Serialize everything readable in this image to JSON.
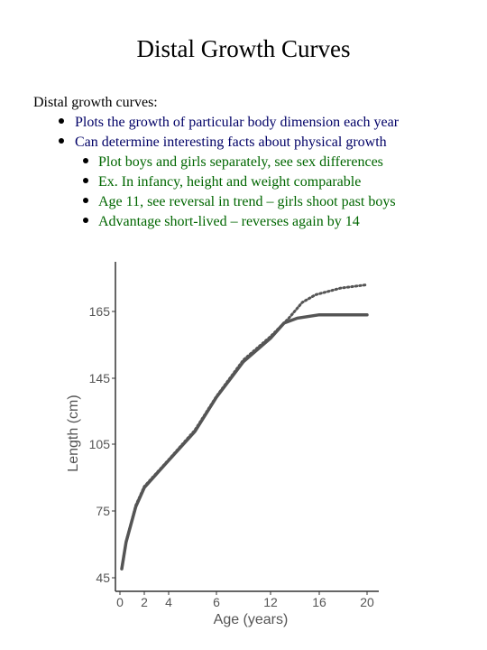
{
  "title": "Distal Growth Curves",
  "intro": "Distal growth curves:",
  "bullets": [
    {
      "text": "Plots the growth of particular body dimension each year",
      "sub": []
    },
    {
      "text": "Can determine interesting facts about physical growth",
      "sub": [
        "Plot boys and girls separately, see sex differences",
        "Ex. In infancy, height and weight comparable",
        "Age 11, see reversal in trend – girls shoot past boys",
        "Advantage short-lived – reverses again by 14"
      ]
    }
  ],
  "chart_data": {
    "type": "line",
    "x_label": "Age (years)",
    "y_label": "Length (cm)",
    "xlim": [
      -0.4,
      21
    ],
    "ylim": [
      39,
      180
    ],
    "xticks": [
      0,
      2,
      4,
      6,
      12,
      16,
      20
    ],
    "yticks": [
      45,
      75,
      105,
      145,
      165
    ],
    "series": [
      {
        "color": "#555555",
        "style": "solid",
        "x": [
          0.15,
          0.5,
          1.3,
          2,
          4,
          5.1,
          6,
          9,
          12,
          13.1,
          14.2,
          16,
          18,
          20
        ],
        "values": [
          49,
          61,
          77,
          85.5,
          97.7,
          112.7,
          133.5,
          150,
          157,
          161.5,
          163,
          164,
          164,
          164
        ]
      },
      {
        "color": "#555555",
        "style": "dotted",
        "x": [
          0.15,
          0.5,
          1.3,
          2,
          4,
          5.1,
          6,
          9,
          12,
          13.5,
          14.6,
          15.7,
          17.8,
          20
        ],
        "values": [
          49,
          61,
          77.5,
          86,
          98,
          113.5,
          134,
          150.5,
          157.5,
          163,
          167.7,
          170,
          172,
          173
        ]
      }
    ]
  }
}
